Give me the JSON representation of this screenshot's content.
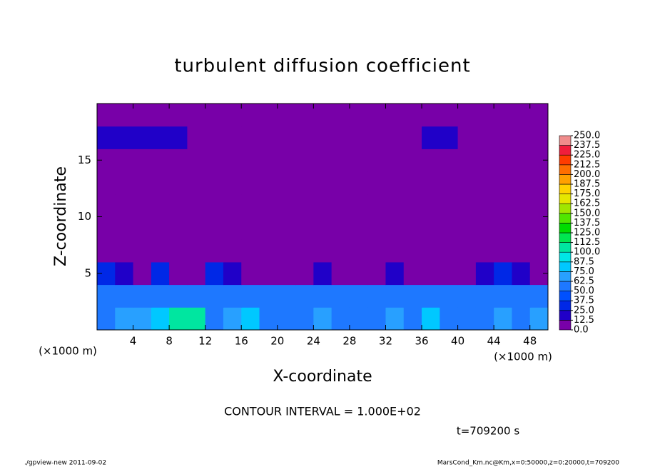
{
  "chart_data": {
    "type": "contour",
    "title": "turbulent diffusion coefficient",
    "x_label": "X-coordinate",
    "y_label": "Z-coordinate",
    "x_unit_left": "(×1000 m)",
    "x_unit_right": "(×1000 m)",
    "contour_note": "CONTOUR INTERVAL = 1.000E+02",
    "time_note": "t=709200 s",
    "footer_left": "./gpview-new  2011-09-02",
    "footer_right": "MarsCond_Km.nc@Km,x=0:50000,z=0:20000,t=709200",
    "xlim": [
      0,
      50
    ],
    "ylim": [
      0,
      20
    ],
    "xticks": [
      4,
      8,
      12,
      16,
      20,
      24,
      28,
      32,
      36,
      40,
      44,
      48
    ],
    "yticks": [
      5,
      10,
      15
    ],
    "x": [
      1,
      3,
      5,
      7,
      9,
      11,
      13,
      15,
      17,
      19,
      21,
      23,
      25,
      27,
      29,
      31,
      33,
      35,
      37,
      39,
      41,
      43,
      45,
      47,
      49
    ],
    "y": [
      1,
      3,
      5,
      7,
      9,
      11,
      13,
      15,
      17,
      19
    ],
    "z": [
      [
        62,
        70,
        65,
        75,
        110,
        100,
        62,
        70,
        75,
        62,
        55,
        62,
        70,
        62,
        55,
        62,
        70,
        62,
        75,
        62,
        62,
        55,
        70,
        62,
        70
      ],
      [
        50,
        62,
        62,
        55,
        62,
        55,
        50,
        62,
        62,
        55,
        50,
        55,
        62,
        50,
        62,
        55,
        50,
        62,
        55,
        62,
        62,
        50,
        62,
        55,
        62
      ],
      [
        25,
        20,
        10,
        25,
        12,
        0,
        25,
        20,
        0,
        0,
        0,
        12,
        20,
        10,
        0,
        12,
        20,
        0,
        0,
        0,
        12,
        20,
        25,
        20,
        12
      ],
      [
        0,
        0,
        12,
        0,
        0,
        0,
        0,
        0,
        0,
        0,
        0,
        0,
        0,
        0,
        0,
        0,
        0,
        0,
        0,
        0,
        0,
        0,
        0,
        12,
        12
      ],
      [
        0,
        0,
        12,
        0,
        0,
        0,
        0,
        0,
        0,
        0,
        0,
        0,
        0,
        0,
        0,
        0,
        0,
        0,
        0,
        0,
        0,
        0,
        0,
        0,
        0
      ],
      [
        0,
        0,
        0,
        0,
        0,
        0,
        0,
        0,
        0,
        0,
        0,
        0,
        0,
        0,
        0,
        0,
        0,
        0,
        0,
        0,
        0,
        0,
        0,
        0,
        0
      ],
      [
        0,
        0,
        0,
        0,
        0,
        0,
        0,
        0,
        0,
        0,
        0,
        0,
        0,
        0,
        0,
        0,
        0,
        0,
        0,
        0,
        0,
        0,
        0,
        0,
        0
      ],
      [
        0,
        0,
        0,
        0,
        0,
        0,
        0,
        0,
        0,
        0,
        0,
        0,
        0,
        0,
        0,
        0,
        0,
        0,
        0,
        0,
        0,
        0,
        0,
        0,
        0
      ],
      [
        20,
        20,
        20,
        20,
        20,
        12,
        12,
        12,
        12,
        12,
        12,
        12,
        12,
        0,
        0,
        0,
        0,
        0,
        20,
        20,
        12,
        12,
        12,
        12,
        12
      ],
      [
        0,
        0,
        0,
        0,
        0,
        0,
        0,
        0,
        0,
        0,
        0,
        0,
        0,
        0,
        0,
        0,
        0,
        0,
        0,
        0,
        0,
        0,
        0,
        0,
        0
      ]
    ],
    "levels": [
      {
        "value": 0,
        "label": "0.0"
      },
      {
        "value": 12.5,
        "label": "12.5"
      },
      {
        "value": 25,
        "label": "25.0"
      },
      {
        "value": 37.5,
        "label": "37.5"
      },
      {
        "value": 50,
        "label": "50.0"
      },
      {
        "value": 62.5,
        "label": "62.5"
      },
      {
        "value": 75,
        "label": "75.0"
      },
      {
        "value": 87.5,
        "label": "87.5"
      },
      {
        "value": 100,
        "label": "100.0"
      },
      {
        "value": 112.5,
        "label": "112.5"
      },
      {
        "value": 125,
        "label": "125.0"
      },
      {
        "value": 137.5,
        "label": "137.5"
      },
      {
        "value": 150,
        "label": "150.0"
      },
      {
        "value": 162.5,
        "label": "162.5"
      },
      {
        "value": 175,
        "label": "175.0"
      },
      {
        "value": 187.5,
        "label": "187.5"
      },
      {
        "value": 200,
        "label": "200.0"
      },
      {
        "value": 212.5,
        "label": "212.5"
      },
      {
        "value": 225,
        "label": "225.0"
      },
      {
        "value": 237.5,
        "label": "237.5"
      },
      {
        "value": 250,
        "label": "250.0"
      }
    ],
    "colors": [
      "#7800a8",
      "#2000c8",
      "#0028e6",
      "#0050ff",
      "#1e78ff",
      "#28a0ff",
      "#00c8ff",
      "#00e6e6",
      "#00e6a0",
      "#00e650",
      "#00dc00",
      "#50e600",
      "#a0e600",
      "#e6e600",
      "#ffd200",
      "#ffa000",
      "#ff6e00",
      "#ff3c00",
      "#f01e3c",
      "#f08c8c"
    ]
  }
}
